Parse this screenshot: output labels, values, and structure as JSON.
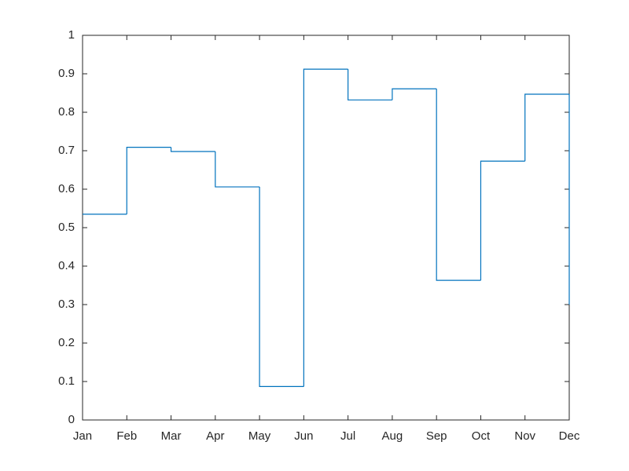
{
  "chart_data": {
    "type": "stairs",
    "categories": [
      "Jan",
      "Feb",
      "Mar",
      "Apr",
      "May",
      "Jun",
      "Jul",
      "Aug",
      "Sep",
      "Oct",
      "Nov",
      "Dec"
    ],
    "values": [
      0.535,
      0.709,
      0.698,
      0.606,
      0.087,
      0.912,
      0.832,
      0.861,
      0.363,
      0.673,
      0.847,
      0.3
    ],
    "color": "#0072bd",
    "ylim": [
      0,
      1
    ],
    "yticks": [
      0,
      0.1,
      0.2,
      0.3,
      0.4,
      0.5,
      0.6,
      0.7,
      0.8,
      0.9,
      1
    ]
  }
}
